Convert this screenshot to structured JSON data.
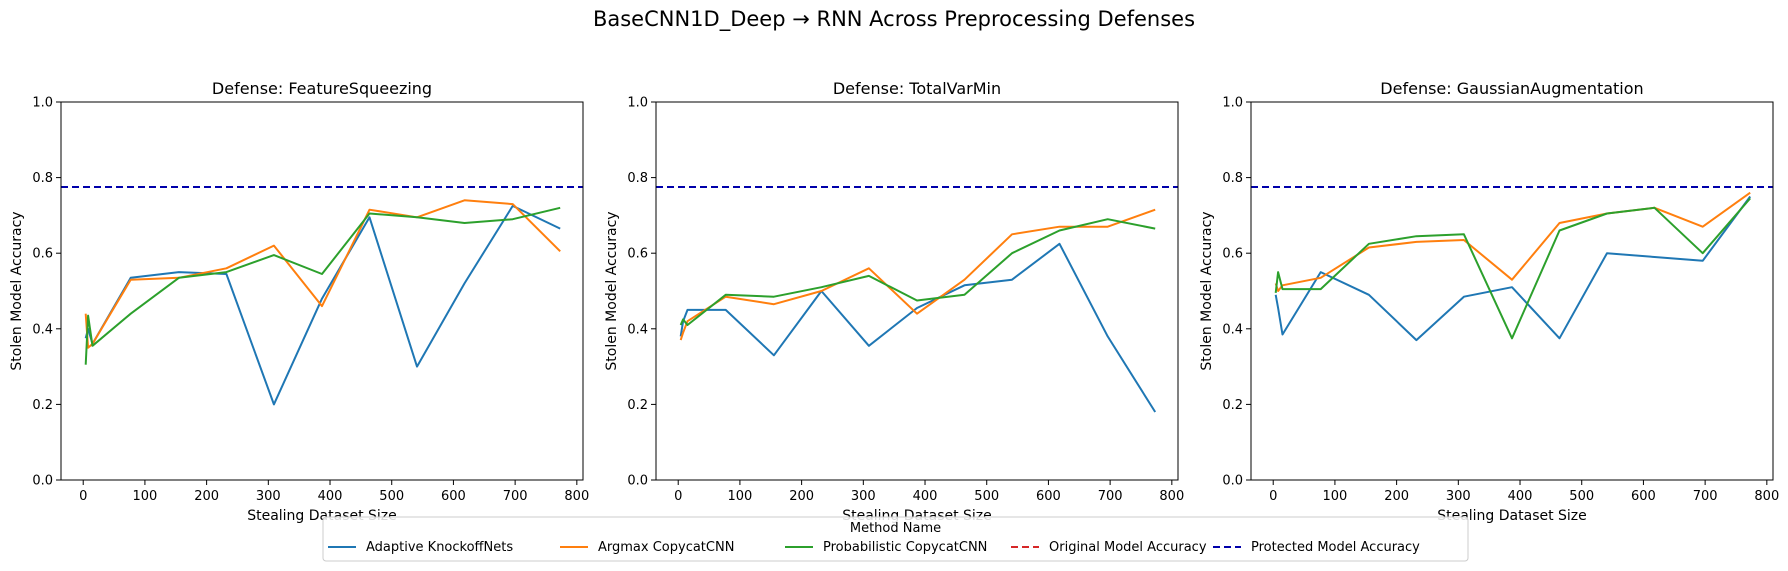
{
  "figure": {
    "title": "BaseCNN1D_Deep → RNN Across Preprocessing Defenses"
  },
  "legend": {
    "title": "Method Name",
    "placement": "bottom-center",
    "entries": [
      {
        "label": "Adaptive KnockoffNets",
        "color": "#1f77b4",
        "style": "solid"
      },
      {
        "label": "Argmax CopycatCNN",
        "color": "#ff7f0e",
        "style": "solid"
      },
      {
        "label": "Probabilistic CopycatCNN",
        "color": "#2ca02c",
        "style": "solid"
      },
      {
        "label": "Original Model Accuracy",
        "color": "#d62728",
        "style": "dashed"
      },
      {
        "label": "Protected Model Accuracy",
        "color": "#0000aa",
        "style": "dashed"
      }
    ]
  },
  "chart_data": [
    {
      "type": "line",
      "title": "Defense: FeatureSqueezing",
      "xlabel": "Stealing Dataset Size",
      "ylabel": "Stolen Model Accuracy",
      "xlim": [
        -36,
        810
      ],
      "ylim": [
        0,
        1
      ],
      "xticks": [
        0,
        100,
        200,
        300,
        400,
        500,
        600,
        700,
        800
      ],
      "yticks": [
        0.0,
        0.2,
        0.4,
        0.6,
        0.8,
        1.0
      ],
      "grid": false,
      "hlines": [
        {
          "name": "Protected Model Accuracy",
          "y": 0.775,
          "color": "#0000aa",
          "style": "dashed"
        }
      ],
      "series": [
        {
          "name": "Adaptive KnockoffNets",
          "color": "#1f77b4",
          "x": [
            4,
            8,
            15,
            77,
            155,
            232,
            309,
            387,
            464,
            541,
            618,
            696,
            773
          ],
          "y": [
            0.375,
            0.4,
            0.36,
            0.535,
            0.55,
            0.545,
            0.2,
            0.48,
            0.695,
            0.3,
            0.52,
            0.725,
            0.665
          ]
        },
        {
          "name": "Argmax CopycatCNN",
          "color": "#ff7f0e",
          "x": [
            4,
            8,
            15,
            77,
            155,
            232,
            309,
            387,
            464,
            541,
            618,
            696,
            773
          ],
          "y": [
            0.44,
            0.35,
            0.36,
            0.53,
            0.535,
            0.56,
            0.62,
            0.46,
            0.715,
            0.695,
            0.74,
            0.73,
            0.605
          ]
        },
        {
          "name": "Probabilistic CopycatCNN",
          "color": "#2ca02c",
          "x": [
            4,
            8,
            15,
            77,
            155,
            232,
            309,
            387,
            464,
            541,
            618,
            696,
            773
          ],
          "y": [
            0.305,
            0.435,
            0.355,
            0.44,
            0.535,
            0.55,
            0.595,
            0.545,
            0.705,
            0.695,
            0.68,
            0.69,
            0.72
          ]
        }
      ]
    },
    {
      "type": "line",
      "title": "Defense: TotalVarMin",
      "xlabel": "Stealing Dataset Size",
      "ylabel": "Stolen Model Accuracy",
      "xlim": [
        -36,
        810
      ],
      "ylim": [
        0,
        1
      ],
      "xticks": [
        0,
        100,
        200,
        300,
        400,
        500,
        600,
        700,
        800
      ],
      "yticks": [
        0.0,
        0.2,
        0.4,
        0.6,
        0.8,
        1.0
      ],
      "grid": false,
      "hlines": [
        {
          "name": "Protected Model Accuracy",
          "y": 0.775,
          "color": "#0000aa",
          "style": "dashed"
        }
      ],
      "series": [
        {
          "name": "Adaptive KnockoffNets",
          "color": "#1f77b4",
          "x": [
            4,
            8,
            15,
            77,
            155,
            232,
            309,
            387,
            464,
            541,
            618,
            696,
            773
          ],
          "y": [
            0.38,
            0.42,
            0.45,
            0.45,
            0.33,
            0.5,
            0.355,
            0.455,
            0.515,
            0.53,
            0.625,
            0.38,
            0.18
          ]
        },
        {
          "name": "Argmax CopycatCNN",
          "color": "#ff7f0e",
          "x": [
            4,
            8,
            15,
            77,
            155,
            232,
            309,
            387,
            464,
            541,
            618,
            696,
            773
          ],
          "y": [
            0.37,
            0.39,
            0.42,
            0.485,
            0.465,
            0.5,
            0.56,
            0.44,
            0.53,
            0.65,
            0.67,
            0.67,
            0.715
          ]
        },
        {
          "name": "Probabilistic CopycatCNN",
          "color": "#2ca02c",
          "x": [
            4,
            8,
            15,
            77,
            155,
            232,
            309,
            387,
            464,
            541,
            618,
            696,
            773
          ],
          "y": [
            0.41,
            0.425,
            0.41,
            0.49,
            0.485,
            0.51,
            0.54,
            0.475,
            0.49,
            0.6,
            0.66,
            0.69,
            0.665
          ]
        }
      ]
    },
    {
      "type": "line",
      "title": "Defense: GaussianAugmentation",
      "xlabel": "Stealing Dataset Size",
      "ylabel": "Stolen Model Accuracy",
      "xlim": [
        -36,
        810
      ],
      "ylim": [
        0,
        1
      ],
      "xticks": [
        0,
        100,
        200,
        300,
        400,
        500,
        600,
        700,
        800
      ],
      "yticks": [
        0.0,
        0.2,
        0.4,
        0.6,
        0.8,
        1.0
      ],
      "grid": false,
      "hlines": [
        {
          "name": "Protected Model Accuracy",
          "y": 0.775,
          "color": "#0000aa",
          "style": "dashed"
        }
      ],
      "series": [
        {
          "name": "Adaptive KnockoffNets",
          "color": "#1f77b4",
          "x": [
            4,
            8,
            15,
            77,
            155,
            232,
            309,
            387,
            464,
            541,
            618,
            696,
            773
          ],
          "y": [
            0.49,
            0.455,
            0.385,
            0.55,
            0.49,
            0.37,
            0.485,
            0.51,
            0.375,
            0.6,
            0.59,
            0.58,
            0.75
          ]
        },
        {
          "name": "Argmax CopycatCNN",
          "color": "#ff7f0e",
          "x": [
            4,
            8,
            15,
            77,
            155,
            232,
            309,
            387,
            464,
            541,
            618,
            696,
            773
          ],
          "y": [
            0.52,
            0.5,
            0.515,
            0.535,
            0.615,
            0.63,
            0.635,
            0.53,
            0.68,
            0.705,
            0.72,
            0.67,
            0.76
          ]
        },
        {
          "name": "Probabilistic CopycatCNN",
          "color": "#2ca02c",
          "x": [
            4,
            8,
            15,
            77,
            155,
            232,
            309,
            387,
            464,
            541,
            618,
            696,
            773
          ],
          "y": [
            0.495,
            0.55,
            0.505,
            0.505,
            0.625,
            0.645,
            0.65,
            0.375,
            0.66,
            0.705,
            0.72,
            0.6,
            0.745
          ]
        }
      ]
    }
  ]
}
